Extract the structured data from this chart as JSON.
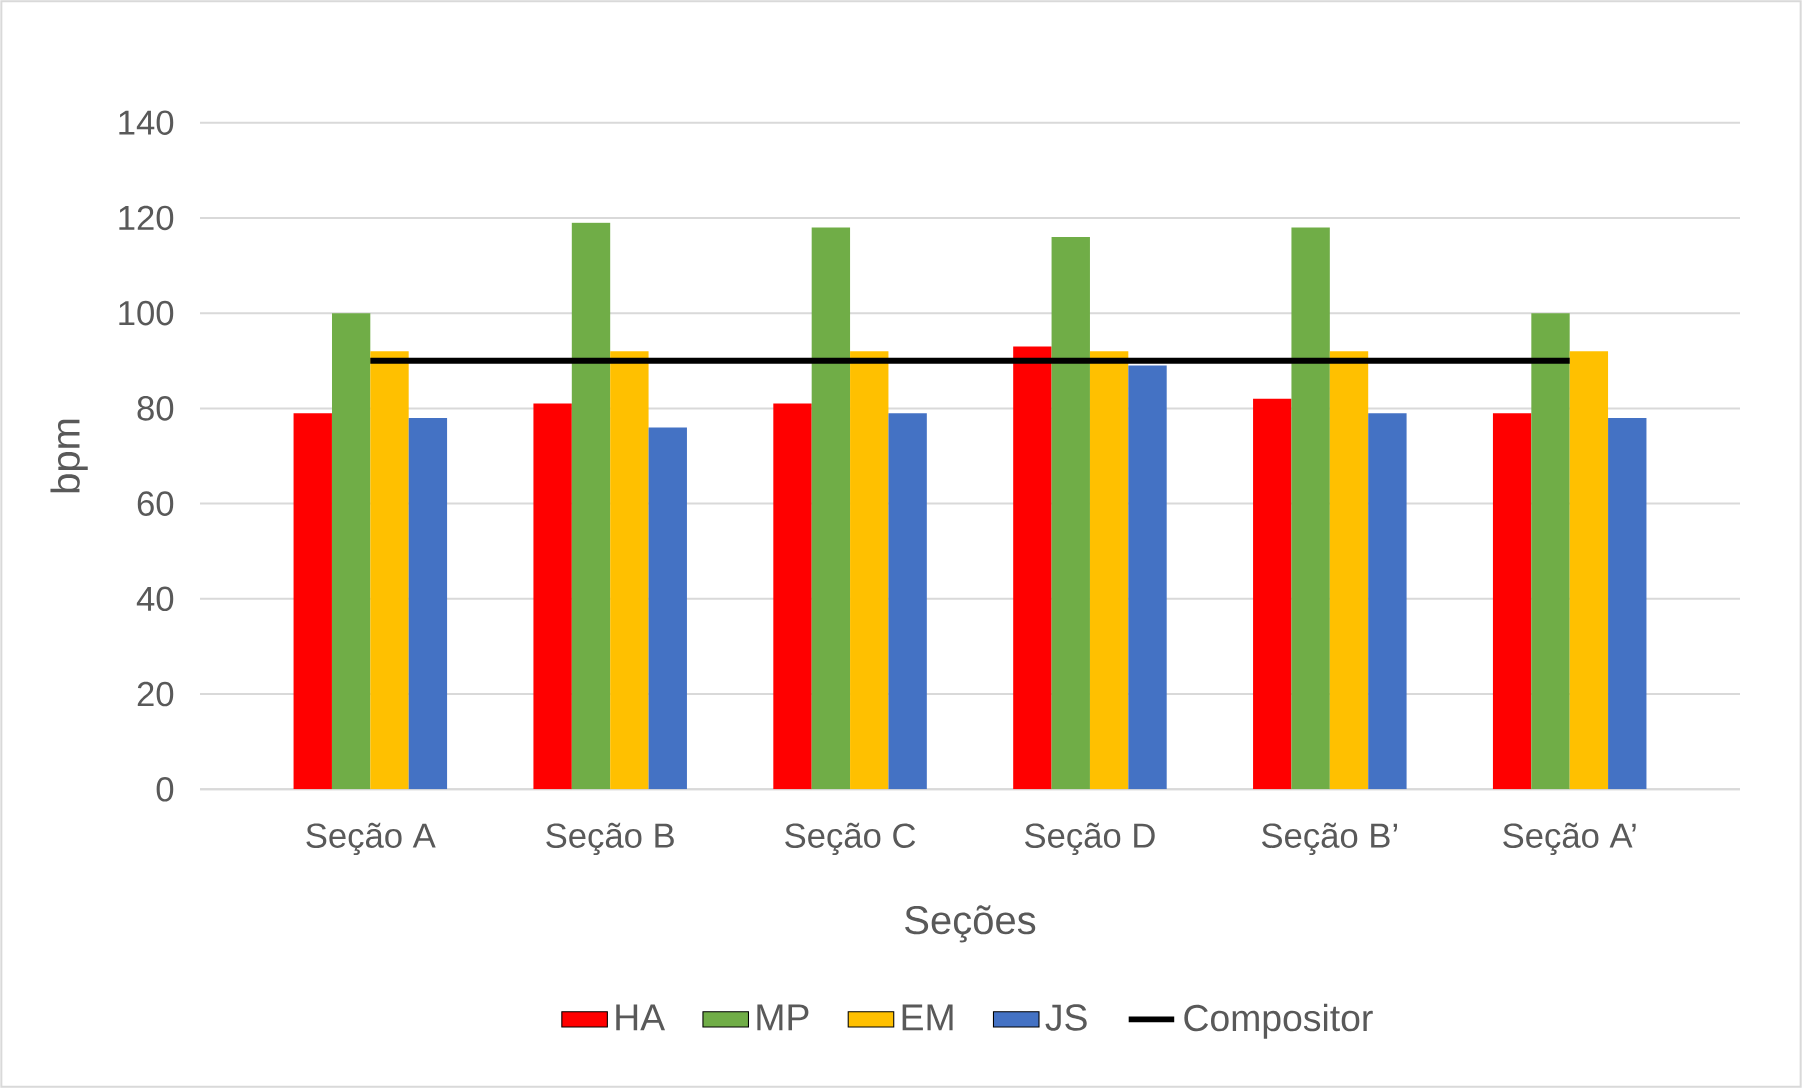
{
  "chart_data": {
    "type": "bar",
    "xlabel": "Seções",
    "ylabel": "bpm",
    "categories": [
      "Seção A",
      "Seção B",
      "Seção C",
      "Seção D",
      "Seção B’",
      "Seção A’"
    ],
    "series": [
      {
        "name": "HA",
        "color": "#ff0000",
        "values": [
          79,
          81,
          81,
          93,
          82,
          79
        ]
      },
      {
        "name": "MP",
        "color": "#70ad47",
        "values": [
          100,
          119,
          118,
          116,
          118,
          100
        ]
      },
      {
        "name": "EM",
        "color": "#ffc000",
        "values": [
          92,
          92,
          92,
          92,
          92,
          92
        ]
      },
      {
        "name": "JS",
        "color": "#4472c4",
        "values": [
          78,
          76,
          79,
          89,
          79,
          78
        ]
      },
      {
        "name": "Compositor",
        "type": "line",
        "color": "#000000",
        "values": [
          90,
          90,
          90,
          90,
          90,
          90
        ]
      }
    ],
    "ylim": [
      0,
      140
    ],
    "yticks": [
      0,
      20,
      40,
      60,
      80,
      100,
      120,
      140
    ],
    "grid": "y",
    "legend": "bottom",
    "marker": "none",
    "line_style": "solid"
  }
}
